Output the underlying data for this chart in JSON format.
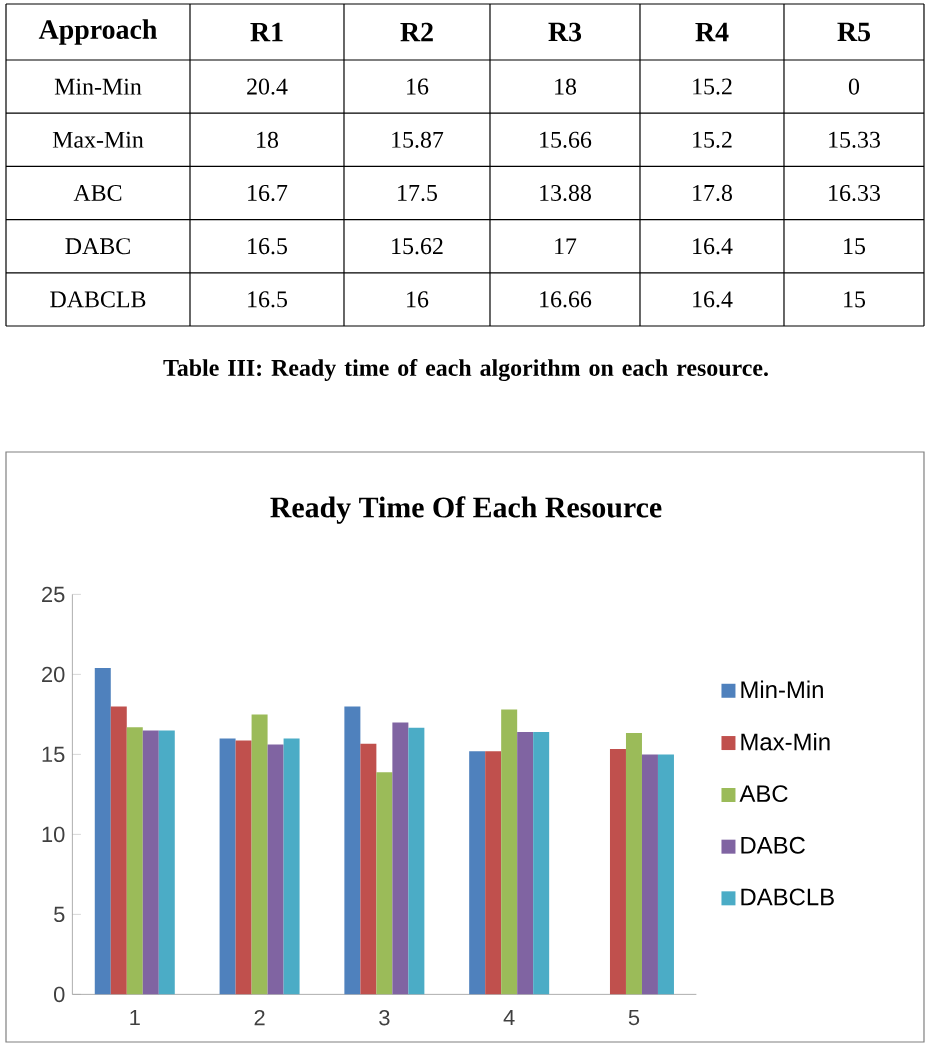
{
  "chart_data": [
    {
      "type": "other",
      "categories": [
        "R1",
        "R2",
        "R3",
        "R4",
        "R5"
      ],
      "series": [
        {
          "name": "Min-Min",
          "values": [
            20.4,
            16,
            18,
            15.2,
            0
          ]
        },
        {
          "name": "Max-Min",
          "values": [
            18,
            15.87,
            15.66,
            15.2,
            15.33
          ]
        },
        {
          "name": "ABC",
          "values": [
            16.7,
            17.5,
            13.88,
            17.8,
            16.33
          ]
        },
        {
          "name": "DABC",
          "values": [
            16.5,
            15.62,
            17,
            16.4,
            15
          ]
        },
        {
          "name": "DABCLB",
          "values": [
            16.5,
            16,
            16.66,
            16.4,
            15
          ]
        }
      ],
      "data_labels": true,
      "annotations": [
        "Approach",
        "Table III: Ready time of each algorithm on each resource."
      ]
    },
    {
      "type": "bar",
      "title": "Ready Time Of Each Resource",
      "categories": [
        "1",
        "2",
        "3",
        "4",
        "5"
      ],
      "series": [
        {
          "name": "Min-Min",
          "color": "#4f81bd",
          "values": [
            20.4,
            16,
            18,
            15.2,
            0
          ]
        },
        {
          "name": "Max-Min",
          "color": "#c0504d",
          "values": [
            18,
            15.87,
            15.66,
            15.2,
            15.33
          ]
        },
        {
          "name": "ABC",
          "color": "#9bbb59",
          "values": [
            16.7,
            17.5,
            13.88,
            17.8,
            16.33
          ]
        },
        {
          "name": "DABC",
          "color": "#8064a2",
          "values": [
            16.5,
            15.62,
            17,
            16.4,
            15
          ]
        },
        {
          "name": "DABCLB",
          "color": "#4bacc6",
          "values": [
            16.5,
            16,
            16.66,
            16.4,
            15
          ]
        }
      ],
      "ylim": [
        0,
        25
      ],
      "yticks": [
        0,
        5,
        10,
        15,
        20,
        25
      ],
      "legend": "right"
    }
  ]
}
